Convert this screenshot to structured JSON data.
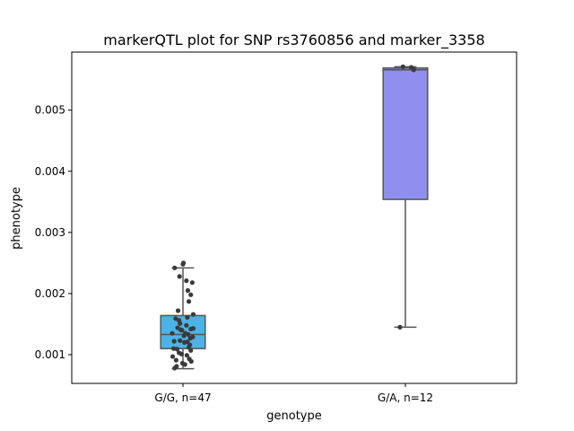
{
  "chart_data": {
    "type": "box",
    "title": "markerQTL plot for SNP rs3760856 and marker_3358",
    "xlabel": "genotype",
    "ylabel": "phenotype",
    "ylim": [
      0.00053,
      0.00595
    ],
    "yticks": [
      0.001,
      0.002,
      0.003,
      0.004,
      0.005
    ],
    "ytick_labels": [
      "0.001",
      "0.002",
      "0.003",
      "0.004",
      "0.005"
    ],
    "categories": [
      "G/G, n=47",
      "G/A, n=12"
    ],
    "boxes": [
      {
        "category": "G/G, n=47",
        "color": "#4db3e6",
        "whisker_low": 0.00077,
        "q1": 0.0011,
        "median": 0.00133,
        "q3": 0.00164,
        "whisker_high": 0.00242,
        "points": [
          [
            -0.17,
            0.00242
          ],
          [
            0.0,
            0.00248
          ],
          [
            0.01,
            0.0025
          ],
          [
            -0.07,
            0.00228
          ],
          [
            0.07,
            0.00221
          ],
          [
            0.19,
            0.00218
          ],
          [
            0.1,
            0.00205
          ],
          [
            0.16,
            0.00198
          ],
          [
            0.12,
            0.00187
          ],
          [
            -0.1,
            0.00172
          ],
          [
            0.21,
            0.00166
          ],
          [
            0.09,
            0.00161
          ],
          [
            -0.15,
            0.00159
          ],
          [
            -0.08,
            0.00156
          ],
          [
            0.07,
            0.00148
          ],
          [
            -0.11,
            0.00144
          ],
          [
            -0.05,
            0.00141
          ],
          [
            -0.02,
            0.0014
          ],
          [
            0.16,
            0.00142
          ],
          [
            0.21,
            0.00143
          ],
          [
            -0.22,
            0.00135
          ],
          [
            0.05,
            0.00135
          ],
          [
            0.11,
            0.00133
          ],
          [
            0.2,
            0.00129
          ],
          [
            0.15,
            0.00127
          ],
          [
            -0.18,
            0.00122
          ],
          [
            -0.06,
            0.00123
          ],
          [
            0.09,
            0.00121
          ],
          [
            0.03,
            0.0012
          ],
          [
            0.14,
            0.00116
          ],
          [
            0.12,
            0.00112
          ],
          [
            -0.12,
            0.00109
          ],
          [
            0.16,
            0.00107
          ],
          [
            -0.08,
            0.00103
          ],
          [
            -0.03,
            0.00101
          ],
          [
            0.08,
            0.00099
          ],
          [
            -0.21,
            0.00097
          ],
          [
            -0.14,
            0.00091
          ],
          [
            0.17,
            0.00089
          ],
          [
            -0.01,
            0.00086
          ],
          [
            0.04,
            0.00084
          ],
          [
            -0.17,
            0.00078
          ],
          [
            -0.13,
            0.00081
          ],
          [
            0.13,
            0.00093
          ],
          [
            -0.19,
            0.0011
          ],
          [
            0.02,
            0.00131
          ],
          [
            -0.06,
            0.00151
          ]
        ]
      },
      {
        "category": "G/A, n=12",
        "color": "#8f8ff0",
        "whisker_low": 0.00145,
        "q1": 0.00354,
        "median": 0.00566,
        "q3": 0.00569,
        "whisker_high": 0.00571,
        "points": [
          [
            -0.05,
            0.00571
          ],
          [
            0.12,
            0.0057
          ],
          [
            0.17,
            0.00566
          ],
          [
            -0.11,
            0.00145
          ]
        ]
      }
    ],
    "grid": false,
    "legend": "none"
  }
}
